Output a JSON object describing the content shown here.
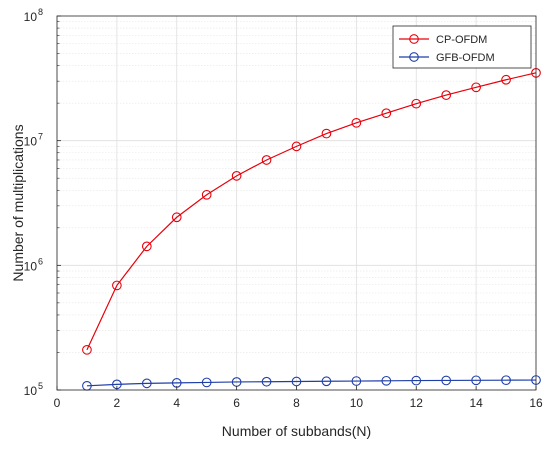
{
  "chart_data": {
    "type": "line",
    "y_scale": "log",
    "grid": true,
    "legend_position": "top-right",
    "xlabel": "Number of subbands(N)",
    "ylabel": "Number of multiplications",
    "xlim": [
      0,
      16
    ],
    "ylim": [
      100000,
      100000000
    ],
    "x_ticks": [
      0,
      2,
      4,
      6,
      8,
      10,
      12,
      14,
      16
    ],
    "x_tick_labels": [
      "0",
      "2",
      "4",
      "6",
      "8",
      "10",
      "12",
      "14",
      "16"
    ],
    "y_ticks": [
      100000,
      1000000,
      10000000,
      100000000
    ],
    "y_tick_labels": [
      {
        "base": "10",
        "exp": "5"
      },
      {
        "base": "10",
        "exp": "6"
      },
      {
        "base": "10",
        "exp": "7"
      },
      {
        "base": "10",
        "exp": "8"
      }
    ],
    "x": [
      1,
      2,
      3,
      4,
      5,
      6,
      7,
      8,
      9,
      10,
      11,
      12,
      13,
      14,
      15,
      16
    ],
    "series": [
      {
        "name": "CP-OFDM",
        "color": "#e8000b",
        "marker": "circle",
        "values": [
          210000,
          690000,
          1420000,
          2430000,
          3680000,
          5220000,
          7000000,
          9000000,
          11400000,
          13900000,
          16600000,
          19800000,
          23200000,
          26800000,
          30800000,
          35000000
        ]
      },
      {
        "name": "GFB-OFDM",
        "color": "#1f3fa8",
        "marker": "circle",
        "values": [
          108000,
          111000,
          113000,
          114000,
          115000,
          116000,
          116500,
          117000,
          117500,
          118000,
          118500,
          119000,
          119300,
          119600,
          119900,
          120200
        ]
      }
    ]
  }
}
